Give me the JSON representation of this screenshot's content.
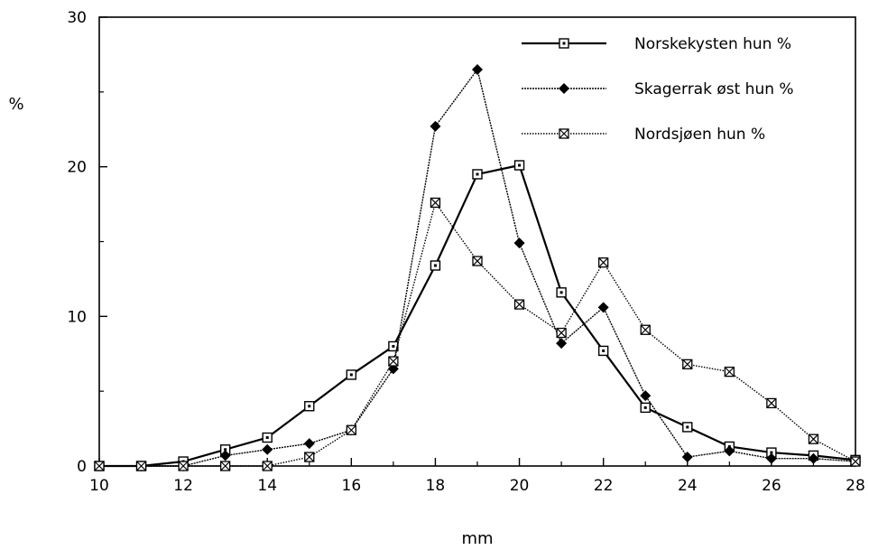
{
  "chart_data": {
    "type": "line",
    "title": "",
    "xlabel": "mm",
    "ylabel": "%",
    "xlim": [
      10,
      28
    ],
    "ylim": [
      0,
      30
    ],
    "x_ticks": [
      10,
      12,
      14,
      16,
      18,
      20,
      22,
      24,
      26,
      28
    ],
    "y_ticks": [
      0,
      10,
      20,
      30
    ],
    "grid": false,
    "legend_position": "top-right",
    "series": [
      {
        "name": "Norskekysten hun %",
        "marker": "open-square",
        "color": "#000000",
        "points": [
          [
            10,
            0
          ],
          [
            11,
            0
          ],
          [
            12,
            0.3
          ],
          [
            13,
            1.1
          ],
          [
            14,
            1.9
          ],
          [
            15,
            4.0
          ],
          [
            16,
            6.1
          ],
          [
            17,
            8.0
          ],
          [
            18,
            13.4
          ],
          [
            19,
            19.5
          ],
          [
            20,
            20.1
          ],
          [
            21,
            11.6
          ],
          [
            22,
            7.7
          ],
          [
            23,
            3.9
          ],
          [
            24,
            2.6
          ],
          [
            25,
            1.3
          ],
          [
            26,
            0.9
          ],
          [
            27,
            0.7
          ],
          [
            28,
            0.4
          ]
        ]
      },
      {
        "name": "Skagerrak øst hun %",
        "marker": "filled-diamond",
        "color": "#000000",
        "points": [
          [
            10,
            0
          ],
          [
            11,
            0
          ],
          [
            12,
            0
          ],
          [
            13,
            0.7
          ],
          [
            14,
            1.1
          ],
          [
            15,
            1.5
          ],
          [
            16,
            2.4
          ],
          [
            17,
            6.5
          ],
          [
            18,
            22.7
          ],
          [
            19,
            26.5
          ],
          [
            20,
            14.9
          ],
          [
            21,
            8.2
          ],
          [
            22,
            10.6
          ],
          [
            23,
            4.7
          ],
          [
            24,
            0.6
          ],
          [
            25,
            1.0
          ],
          [
            26,
            0.5
          ],
          [
            27,
            0.5
          ],
          [
            28,
            0.3
          ]
        ]
      },
      {
        "name": "Nordsjøen hun %",
        "marker": "crossed-square",
        "color": "#000000",
        "points": [
          [
            10,
            0
          ],
          [
            11,
            0
          ],
          [
            12,
            0
          ],
          [
            13,
            0
          ],
          [
            14,
            0
          ],
          [
            15,
            0.6
          ],
          [
            16,
            2.4
          ],
          [
            17,
            7.0
          ],
          [
            18,
            17.6
          ],
          [
            19,
            13.7
          ],
          [
            20,
            10.8
          ],
          [
            21,
            8.9
          ],
          [
            22,
            13.6
          ],
          [
            23,
            9.1
          ],
          [
            24,
            6.8
          ],
          [
            25,
            6.3
          ],
          [
            26,
            4.2
          ],
          [
            27,
            1.8
          ],
          [
            28,
            0.3
          ]
        ]
      }
    ]
  }
}
